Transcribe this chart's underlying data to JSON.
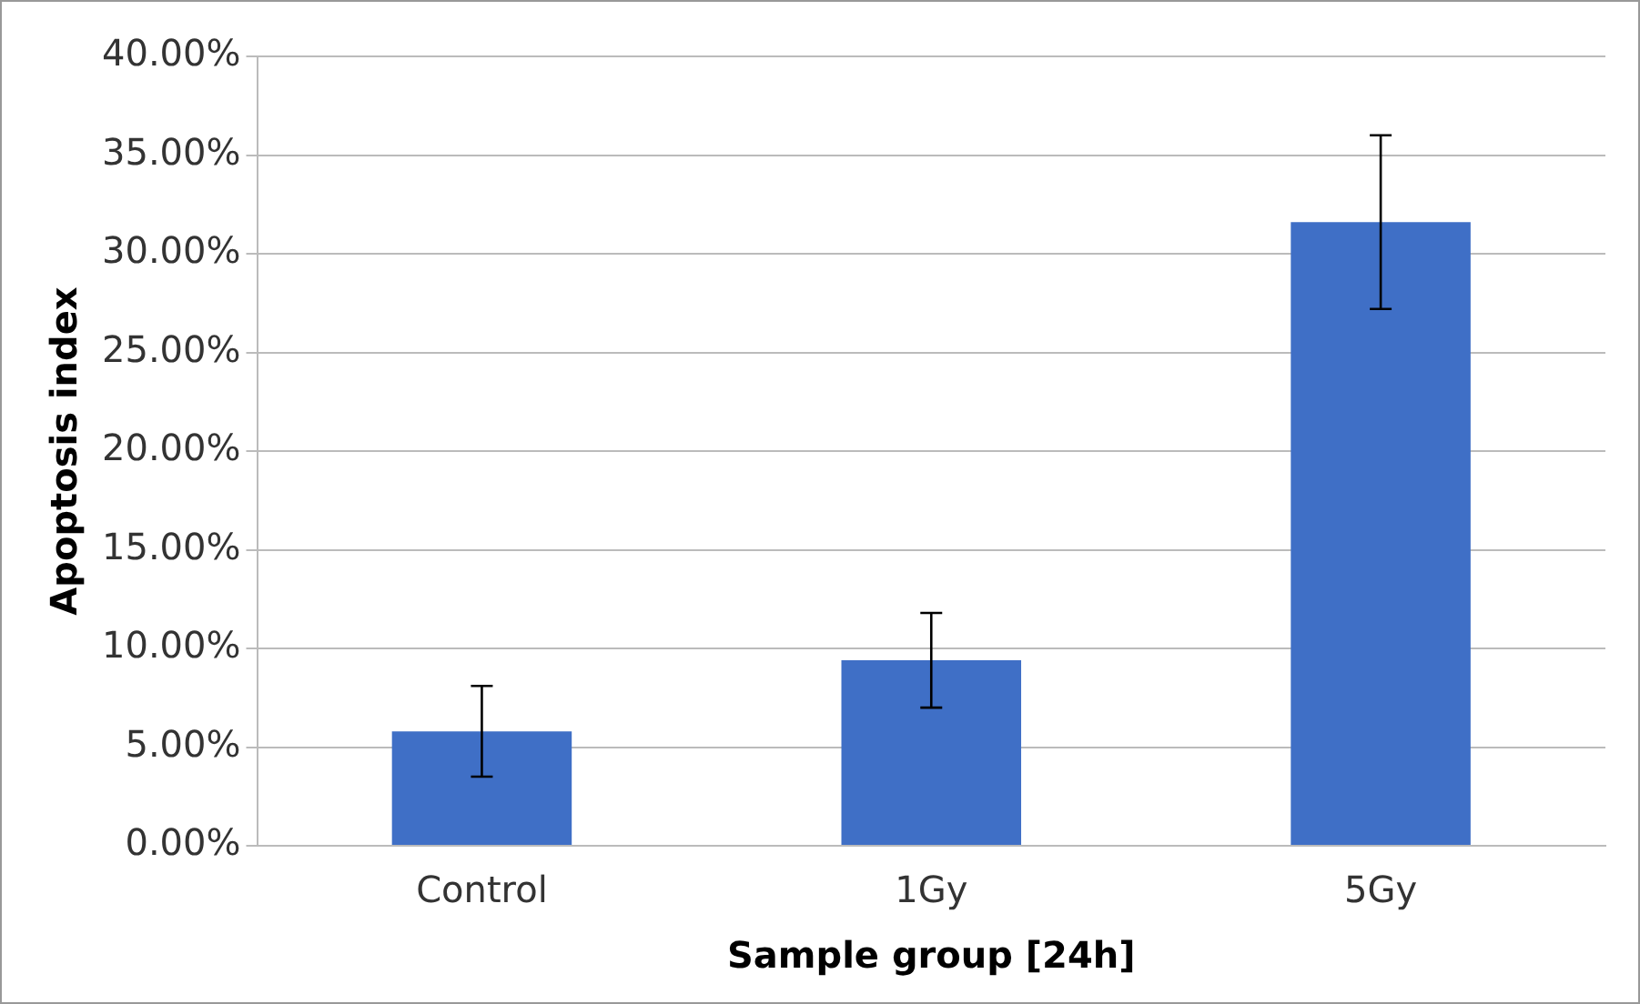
{
  "chart_data": {
    "type": "bar",
    "xlabel": "Sample group [24h]",
    "ylabel": "Apoptosis index",
    "categories": [
      "Control",
      "1Gy",
      "5Gy"
    ],
    "values": [
      5.8,
      9.4,
      31.6
    ],
    "errors": [
      2.3,
      2.4,
      4.4
    ],
    "color": "#3f6fc6",
    "ylim": [
      0,
      40
    ],
    "yticks": [
      {
        "value": 0,
        "label": "0.00%"
      },
      {
        "value": 5,
        "label": "5.00%"
      },
      {
        "value": 10,
        "label": "10.00%"
      },
      {
        "value": 15,
        "label": "15.00%"
      },
      {
        "value": 20,
        "label": "20.00%"
      },
      {
        "value": 25,
        "label": "25.00%"
      },
      {
        "value": 30,
        "label": "30.00%"
      },
      {
        "value": 35,
        "label": "35.00%"
      },
      {
        "value": 40,
        "label": "40.00%"
      }
    ],
    "grid": "y",
    "legend": false
  }
}
